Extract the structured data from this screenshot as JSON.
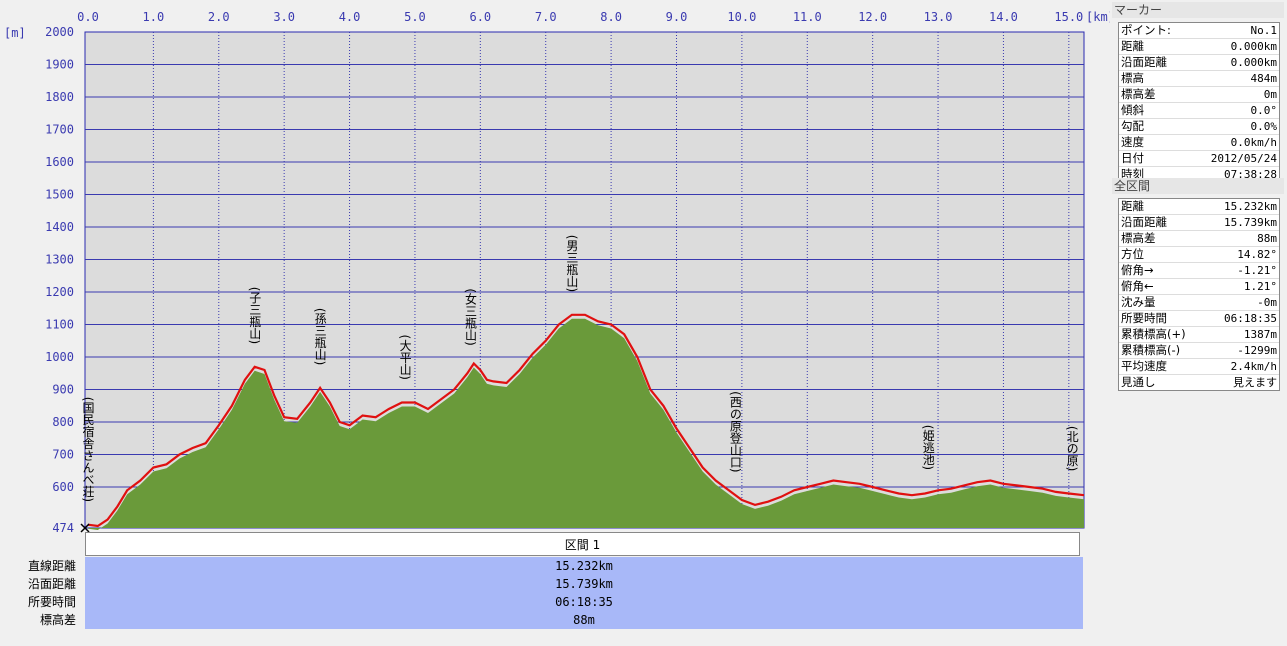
{
  "chart_data": {
    "type": "area",
    "x_unit": "[km]",
    "y_unit": "[m]",
    "xlim": [
      0,
      15.232
    ],
    "ylim": [
      474,
      2000
    ],
    "x_ticks": [
      "0.0",
      "1.0",
      "2.0",
      "3.0",
      "4.0",
      "5.0",
      "6.0",
      "7.0",
      "8.0",
      "9.0",
      "10.0",
      "11.0",
      "12.0",
      "13.0",
      "14.0",
      "15.0"
    ],
    "y_ticks": [
      "2000",
      "1900",
      "1800",
      "1700",
      "1600",
      "1500",
      "1400",
      "1300",
      "1200",
      "1100",
      "1000",
      "900",
      "800",
      "700",
      "600",
      "474"
    ],
    "series": [
      {
        "x": [
          0,
          0.15,
          0.3,
          0.45,
          0.6,
          0.8,
          1.0,
          1.2,
          1.4,
          1.6,
          1.8,
          2.0,
          2.2,
          2.4,
          2.55,
          2.7,
          2.85,
          3.0,
          3.2,
          3.4,
          3.55,
          3.7,
          3.85,
          4.0,
          4.2,
          4.4,
          4.6,
          4.8,
          5.0,
          5.2,
          5.4,
          5.6,
          5.8,
          5.9,
          6.0,
          6.1,
          6.2,
          6.4,
          6.6,
          6.8,
          7.0,
          7.2,
          7.4,
          7.6,
          7.8,
          8.0,
          8.2,
          8.4,
          8.6,
          8.8,
          9.0,
          9.2,
          9.4,
          9.6,
          9.8,
          10.0,
          10.2,
          10.4,
          10.6,
          10.8,
          11.0,
          11.2,
          11.4,
          11.6,
          11.8,
          12.0,
          12.2,
          12.4,
          12.6,
          12.8,
          13.0,
          13.2,
          13.4,
          13.6,
          13.8,
          14.0,
          14.2,
          14.4,
          14.6,
          14.8,
          15.0,
          15.232
        ],
        "y": [
          484,
          480,
          500,
          540,
          590,
          620,
          660,
          670,
          700,
          720,
          735,
          790,
          850,
          930,
          970,
          960,
          880,
          815,
          810,
          860,
          905,
          860,
          800,
          790,
          820,
          815,
          840,
          860,
          860,
          840,
          870,
          900,
          950,
          980,
          960,
          930,
          925,
          920,
          960,
          1010,
          1050,
          1100,
          1130,
          1130,
          1110,
          1100,
          1070,
          1000,
          900,
          850,
          780,
          720,
          660,
          620,
          590,
          560,
          545,
          555,
          570,
          590,
          600,
          610,
          620,
          615,
          610,
          600,
          590,
          580,
          575,
          580,
          590,
          595,
          605,
          615,
          620,
          610,
          605,
          600,
          595,
          585,
          580,
          575
        ]
      }
    ],
    "waypoints": [
      {
        "name": "(国民宿舎さんべ荘)",
        "x": 0.0
      },
      {
        "name": "(子三瓶山)",
        "x": 2.55
      },
      {
        "name": "(孫三瓶山)",
        "x": 3.55
      },
      {
        "name": "(大平山)",
        "x": 4.85
      },
      {
        "name": "(女三瓶山)",
        "x": 5.85
      },
      {
        "name": "(男三瓶山)",
        "x": 7.4
      },
      {
        "name": "(西の原登山口)",
        "x": 9.9
      },
      {
        "name": "(姫逃池)",
        "x": 12.85
      },
      {
        "name": "(北の原)",
        "x": 15.05
      }
    ],
    "colors": {
      "plot_bg": "#dcdcdc",
      "grid": "#3a3ab0",
      "terrain": "#6a9a3a",
      "track": "#e01010"
    }
  },
  "section": {
    "header": "区間 1",
    "rows": [
      {
        "label": "直線距離",
        "value": "15.232km"
      },
      {
        "label": "沿面距離",
        "value": "15.739km"
      },
      {
        "label": "所要時間",
        "value": "06:18:35"
      },
      {
        "label": "標高差",
        "value": "88m"
      }
    ]
  },
  "marker_panel": {
    "title": "マーカー",
    "rows": [
      {
        "label": "ポイント:",
        "value": "No.1"
      },
      {
        "label": "距離",
        "value": "0.000km"
      },
      {
        "label": "沿面距離",
        "value": "0.000km"
      },
      {
        "label": "標高",
        "value": "484m"
      },
      {
        "label": "標高差",
        "value": "0m"
      },
      {
        "label": "傾斜",
        "value": "0.0°"
      },
      {
        "label": "勾配",
        "value": "0.0%"
      },
      {
        "label": "速度",
        "value": "0.0km/h"
      },
      {
        "label": "日付",
        "value": "2012/05/24"
      },
      {
        "label": "時刻",
        "value": "07:38:28"
      }
    ]
  },
  "total_panel": {
    "title": "全区間",
    "rows": [
      {
        "label": "距離",
        "value": "15.232km"
      },
      {
        "label": "沿面距離",
        "value": "15.739km"
      },
      {
        "label": "標高差",
        "value": "88m"
      },
      {
        "label": "方位",
        "value": "14.82°"
      },
      {
        "label": "俯角→",
        "value": "-1.21°"
      },
      {
        "label": "俯角←",
        "value": "1.21°"
      },
      {
        "label": "沈み量",
        "value": "-0m"
      },
      {
        "label": "所要時間",
        "value": "06:18:35"
      },
      {
        "label": "累積標高(+)",
        "value": "1387m"
      },
      {
        "label": "累積標高(-)",
        "value": "-1299m"
      },
      {
        "label": "平均速度",
        "value": "2.4km/h"
      },
      {
        "label": "見通し",
        "value": "見えます"
      }
    ]
  }
}
